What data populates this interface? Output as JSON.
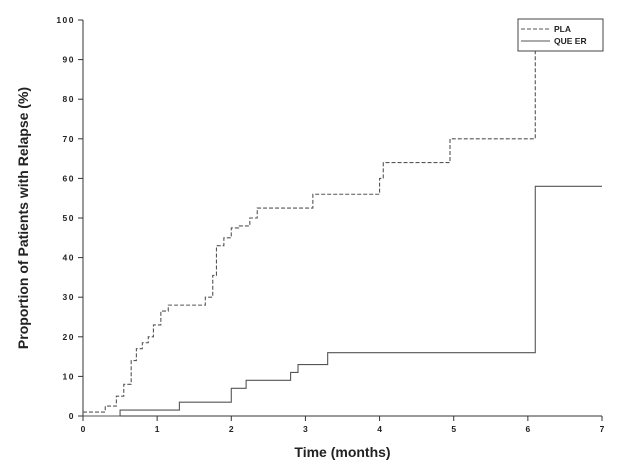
{
  "chart_data": {
    "type": "line",
    "title": "",
    "xlabel": "Time (months)",
    "ylabel": "Proportion of Patients with Relapse (%)",
    "xlim": [
      0,
      7
    ],
    "ylim": [
      0,
      100
    ],
    "x_ticks": [
      "0",
      "1",
      "2",
      "3",
      "4",
      "5",
      "6",
      "7"
    ],
    "y_ticks": [
      "0",
      "10",
      "20",
      "30",
      "40",
      "50",
      "60",
      "70",
      "80",
      "90",
      "100"
    ],
    "grid": false,
    "legend_position": "top-right",
    "step": true,
    "series": [
      {
        "name": "PLA",
        "line_style": "dashed",
        "color": "#555555",
        "x": [
          0,
          0.3,
          0.45,
          0.55,
          0.65,
          0.72,
          0.8,
          0.88,
          0.95,
          1.05,
          1.15,
          1.25,
          1.3,
          1.65,
          1.75,
          1.8,
          1.9,
          2.0,
          2.1,
          2.25,
          2.35,
          2.45,
          3.1,
          4.0,
          4.05,
          4.95,
          6.1
        ],
        "values": [
          1,
          2.5,
          5,
          8,
          14,
          17,
          18.5,
          20,
          23,
          26.5,
          28,
          28,
          28,
          30,
          35.5,
          43,
          45,
          47.5,
          48,
          50,
          52.5,
          52.5,
          56,
          60,
          64,
          70,
          100
        ]
      },
      {
        "name": "QUE ER",
        "line_style": "solid",
        "color": "#555555",
        "x": [
          0,
          0.5,
          1.3,
          2.0,
          2.2,
          2.8,
          2.9,
          3.3,
          6.1,
          7.0
        ],
        "values": [
          0,
          1.5,
          3.5,
          7,
          9,
          11,
          13,
          16,
          58,
          58
        ]
      }
    ]
  }
}
